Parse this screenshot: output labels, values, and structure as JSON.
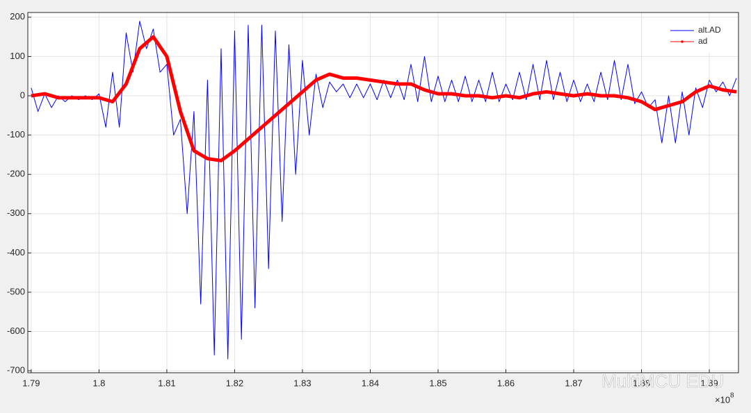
{
  "chart_data": {
    "type": "line",
    "x_multiplier": "×10",
    "x_exponent": "8",
    "watermark": "MultiMCU EDU",
    "xlim": [
      1.7895,
      1.8943
    ],
    "xticks": [
      1.79,
      1.8,
      1.81,
      1.82,
      1.83,
      1.84,
      1.85,
      1.86,
      1.87,
      1.88,
      1.89
    ],
    "ylim": [
      -705,
      212
    ],
    "yticks": [
      -700,
      -600,
      -500,
      -400,
      -300,
      -200,
      -100,
      0,
      100,
      200
    ],
    "grid": true,
    "legend_position": "upper right",
    "series": [
      {
        "name": "alt.AD",
        "color": "#0000ff",
        "line_width": 1,
        "x": [
          1.79,
          1.791,
          1.792,
          1.793,
          1.794,
          1.795,
          1.796,
          1.797,
          1.798,
          1.799,
          1.8,
          1.801,
          1.802,
          1.803,
          1.804,
          1.805,
          1.806,
          1.807,
          1.808,
          1.809,
          1.81,
          1.811,
          1.812,
          1.813,
          1.814,
          1.815,
          1.816,
          1.817,
          1.818,
          1.819,
          1.82,
          1.821,
          1.822,
          1.823,
          1.824,
          1.825,
          1.826,
          1.827,
          1.828,
          1.829,
          1.83,
          1.831,
          1.832,
          1.833,
          1.834,
          1.835,
          1.836,
          1.837,
          1.838,
          1.839,
          1.84,
          1.841,
          1.842,
          1.843,
          1.844,
          1.845,
          1.846,
          1.847,
          1.848,
          1.849,
          1.85,
          1.851,
          1.852,
          1.853,
          1.854,
          1.855,
          1.856,
          1.857,
          1.858,
          1.859,
          1.86,
          1.861,
          1.862,
          1.863,
          1.864,
          1.865,
          1.866,
          1.867,
          1.868,
          1.869,
          1.87,
          1.871,
          1.872,
          1.873,
          1.874,
          1.875,
          1.876,
          1.877,
          1.878,
          1.879,
          1.88,
          1.881,
          1.882,
          1.883,
          1.884,
          1.885,
          1.886,
          1.887,
          1.888,
          1.889,
          1.89,
          1.891,
          1.892,
          1.893,
          1.894
        ],
        "values": [
          20,
          -40,
          5,
          -30,
          0,
          -15,
          0,
          -10,
          0,
          -10,
          5,
          -80,
          60,
          -80,
          160,
          60,
          190,
          120,
          170,
          60,
          80,
          -100,
          -60,
          -300,
          -40,
          -530,
          40,
          -660,
          120,
          -670,
          165,
          -620,
          180,
          -540,
          180,
          -440,
          165,
          -320,
          130,
          -200,
          90,
          -100,
          55,
          -30,
          35,
          10,
          30,
          -5,
          30,
          -5,
          30,
          -10,
          40,
          -5,
          40,
          -10,
          80,
          -15,
          100,
          -15,
          50,
          -15,
          40,
          -15,
          50,
          -15,
          40,
          -15,
          60,
          -15,
          30,
          -10,
          60,
          -10,
          80,
          -10,
          90,
          -10,
          60,
          -15,
          40,
          -15,
          30,
          -15,
          60,
          -10,
          90,
          -10,
          80,
          -20,
          10,
          -30,
          -10,
          -120,
          0,
          -120,
          10,
          -100,
          20,
          -30,
          40,
          10,
          35,
          0,
          45
        ]
      },
      {
        "name": "ad",
        "color": "#ff0000",
        "line_width": 5,
        "x": [
          1.79,
          1.792,
          1.794,
          1.796,
          1.798,
          1.8,
          1.802,
          1.804,
          1.806,
          1.808,
          1.81,
          1.812,
          1.814,
          1.816,
          1.818,
          1.82,
          1.822,
          1.824,
          1.826,
          1.828,
          1.83,
          1.832,
          1.834,
          1.836,
          1.838,
          1.84,
          1.842,
          1.844,
          1.846,
          1.848,
          1.85,
          1.852,
          1.854,
          1.856,
          1.858,
          1.86,
          1.862,
          1.864,
          1.866,
          1.868,
          1.87,
          1.872,
          1.874,
          1.876,
          1.878,
          1.88,
          1.882,
          1.884,
          1.886,
          1.888,
          1.89,
          1.892,
          1.894
        ],
        "values": [
          0,
          5,
          -5,
          -5,
          -5,
          -5,
          -15,
          30,
          120,
          150,
          100,
          -40,
          -140,
          -160,
          -165,
          -140,
          -110,
          -80,
          -50,
          -20,
          10,
          40,
          55,
          45,
          45,
          40,
          35,
          30,
          30,
          15,
          5,
          5,
          0,
          0,
          -5,
          0,
          -5,
          5,
          10,
          5,
          0,
          5,
          0,
          0,
          -5,
          -15,
          -35,
          -25,
          -15,
          10,
          25,
          15,
          10
        ]
      }
    ]
  }
}
